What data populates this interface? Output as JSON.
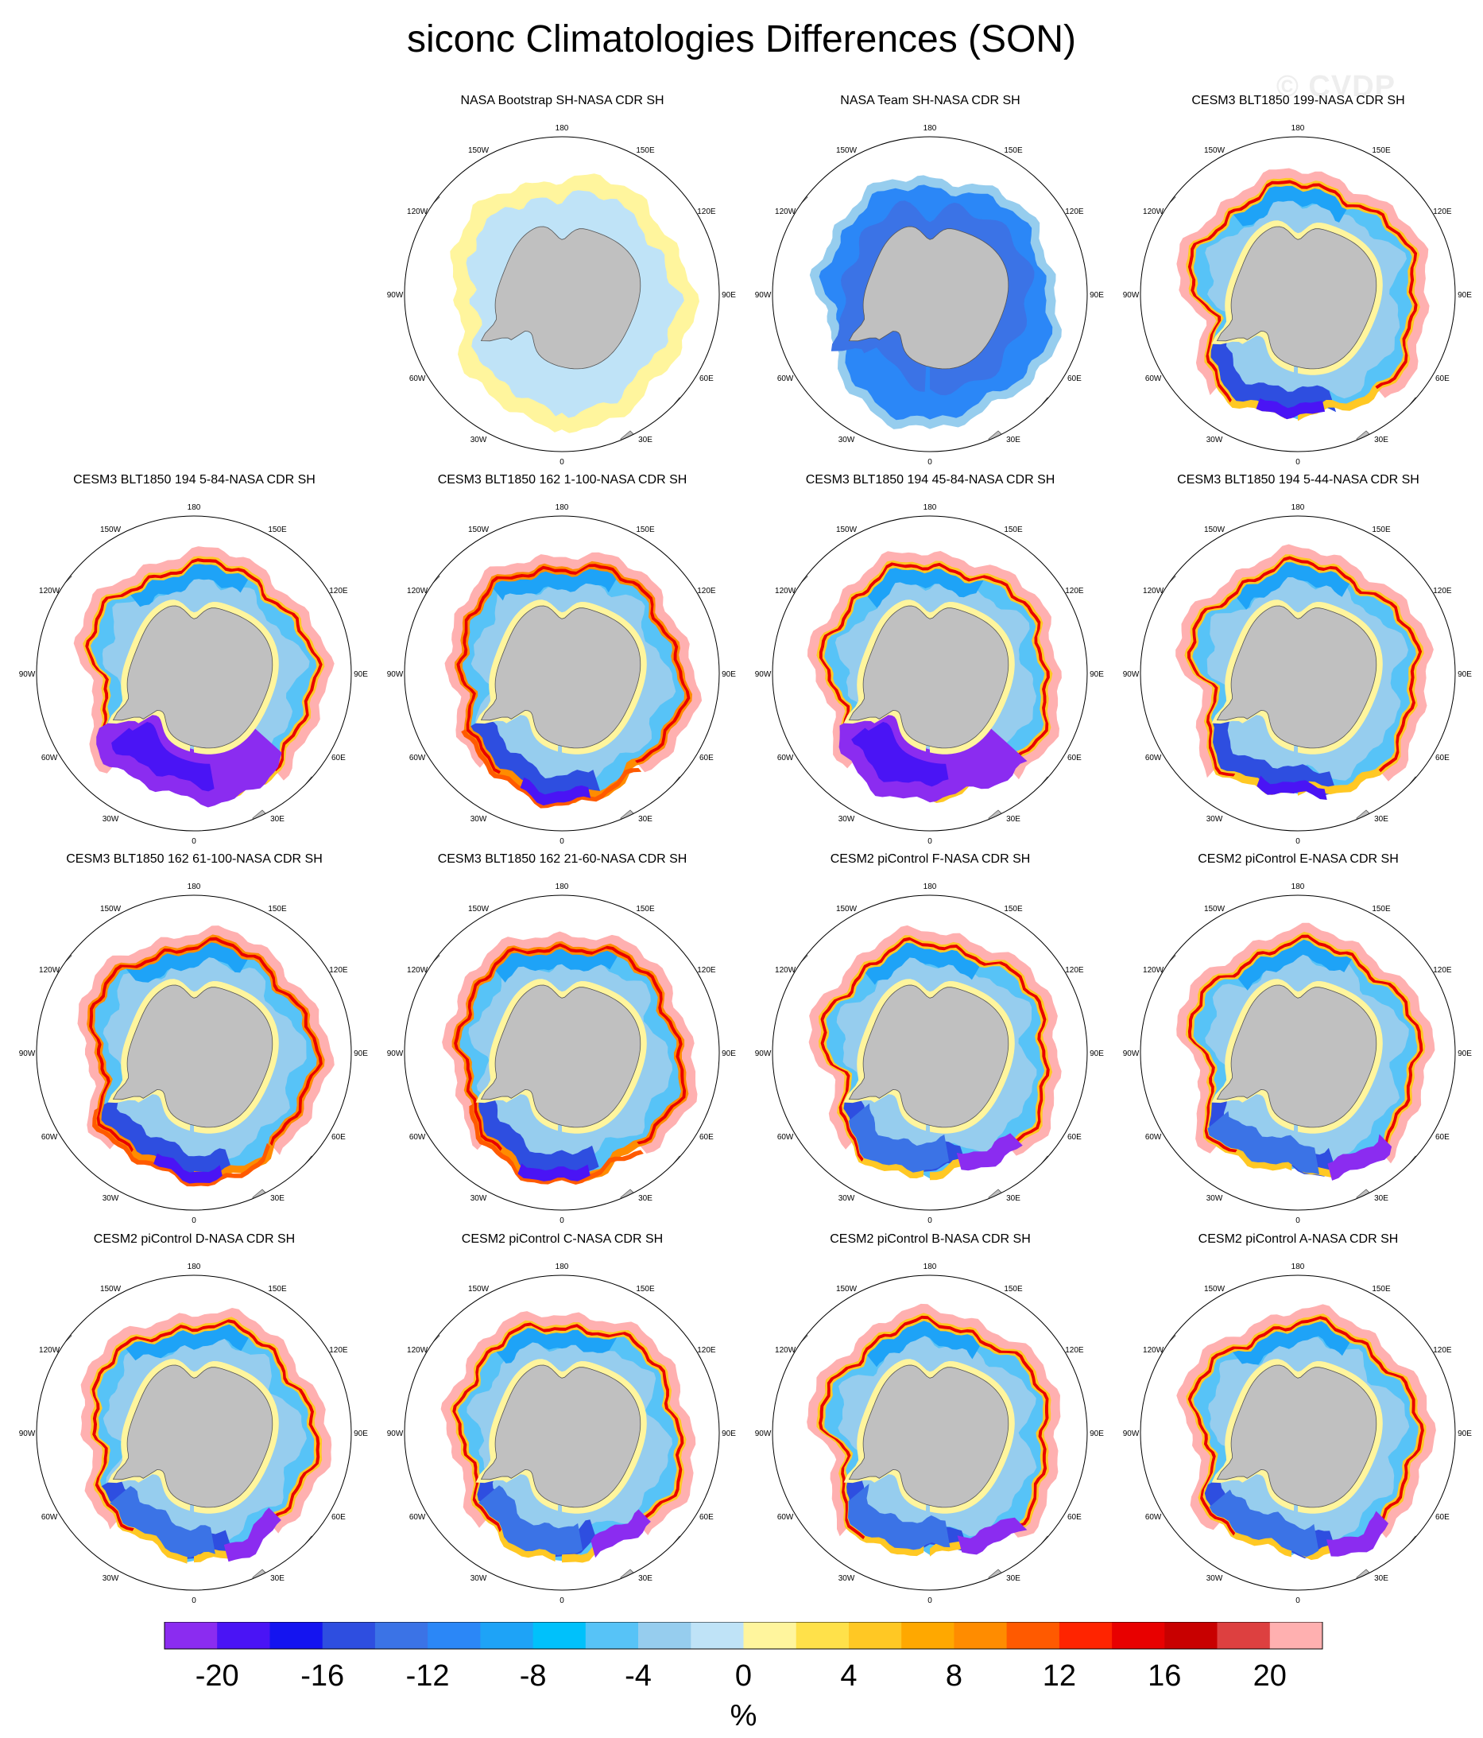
{
  "title": "siconc Climatologies Differences (SON)",
  "watermark": "© CVDP",
  "map": {
    "projection": "south-polar-stereographic",
    "land_color": "#c0c0c0",
    "lon_labels": [
      {
        "deg": 0,
        "label": "0"
      },
      {
        "deg": 30,
        "label": "30E"
      },
      {
        "deg": 60,
        "label": "60E"
      },
      {
        "deg": 90,
        "label": "90E"
      },
      {
        "deg": 120,
        "label": "120E"
      },
      {
        "deg": 150,
        "label": "150E"
      },
      {
        "deg": 180,
        "label": "180"
      },
      {
        "deg": -150,
        "label": "150W"
      },
      {
        "deg": -120,
        "label": "120W"
      },
      {
        "deg": -90,
        "label": "90W"
      },
      {
        "deg": -60,
        "label": "60W"
      },
      {
        "deg": -30,
        "label": "30W"
      }
    ]
  },
  "panels": [
    {
      "row": 0,
      "col": 1,
      "title": "NASA Bootstrap SH-NASA CDR SH",
      "pattern": "bootstrap"
    },
    {
      "row": 0,
      "col": 2,
      "title": "NASA Team SH-NASA CDR SH",
      "pattern": "team"
    },
    {
      "row": 0,
      "col": 3,
      "title": "CESM3 BLT1850 199-NASA CDR SH",
      "pattern": "cesm3"
    },
    {
      "row": 1,
      "col": 0,
      "title": "CESM3 BLT1850 194 5-84-NASA CDR SH",
      "pattern": "cesm3-weddell"
    },
    {
      "row": 1,
      "col": 1,
      "title": "CESM3 BLT1850 162 1-100-NASA CDR SH",
      "pattern": "cesm3-warm"
    },
    {
      "row": 1,
      "col": 2,
      "title": "CESM3 BLT1850 194 45-84-NASA CDR SH",
      "pattern": "cesm3-weddell"
    },
    {
      "row": 1,
      "col": 3,
      "title": "CESM3 BLT1850 194 5-44-NASA CDR SH",
      "pattern": "cesm3"
    },
    {
      "row": 2,
      "col": 0,
      "title": "CESM3 BLT1850 162 61-100-NASA CDR SH",
      "pattern": "cesm3-warm"
    },
    {
      "row": 2,
      "col": 1,
      "title": "CESM3 BLT1850 162 21-60-NASA CDR SH",
      "pattern": "cesm3-warm"
    },
    {
      "row": 2,
      "col": 2,
      "title": "CESM2 piControl F-NASA CDR SH",
      "pattern": "cesm2"
    },
    {
      "row": 2,
      "col": 3,
      "title": "CESM2 piControl E-NASA CDR SH",
      "pattern": "cesm2"
    },
    {
      "row": 3,
      "col": 0,
      "title": "CESM2 piControl D-NASA CDR SH",
      "pattern": "cesm2"
    },
    {
      "row": 3,
      "col": 1,
      "title": "CESM2 piControl C-NASA CDR SH",
      "pattern": "cesm2"
    },
    {
      "row": 3,
      "col": 2,
      "title": "CESM2 piControl B-NASA CDR SH",
      "pattern": "cesm2"
    },
    {
      "row": 3,
      "col": 3,
      "title": "CESM2 piControl A-NASA CDR SH",
      "pattern": "cesm2"
    }
  ],
  "colorbar": {
    "colors": [
      "#8b2cf0",
      "#4a14f5",
      "#1414f0",
      "#2e4ee0",
      "#3b73e6",
      "#2b87f7",
      "#1ea3f7",
      "#00c1fb",
      "#57c3f7",
      "#96cdee",
      "#bfe3f7",
      "#fff59d",
      "#ffe14a",
      "#ffc824",
      "#ffa800",
      "#ff8c00",
      "#ff5a00",
      "#ff2400",
      "#e80000",
      "#c80000",
      "#dd4040",
      "#ffb0b0"
    ],
    "tick_labels": [
      "-20",
      "-16",
      "-12",
      "-8",
      "-4",
      "0",
      "4",
      "8",
      "12",
      "16",
      "20"
    ],
    "unit_label": "%"
  }
}
